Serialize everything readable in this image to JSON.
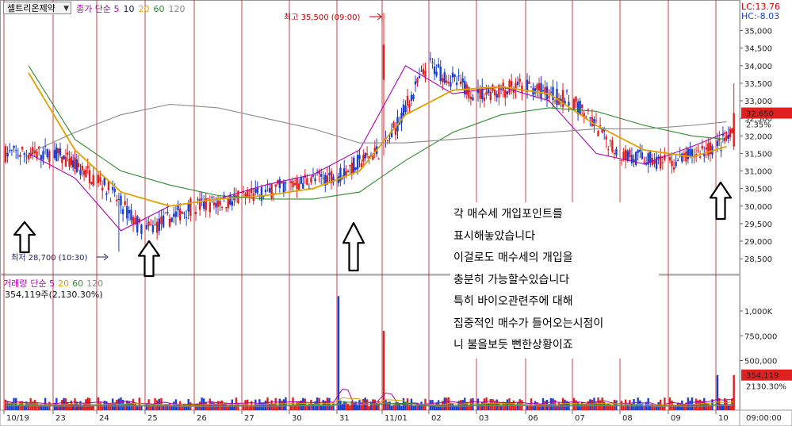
{
  "header": {
    "stock_name": "셀트리온제약",
    "price_legend": [
      {
        "text": "종가 단순 5",
        "color": "#b000b0"
      },
      {
        "text": "10",
        "color": "#1a1a6e"
      },
      {
        "text": "20",
        "color": "#e0a000"
      },
      {
        "text": "60",
        "color": "#2e8b2e"
      },
      {
        "text": "120",
        "color": "#888888"
      }
    ],
    "lc_text": "LC:13.76",
    "hc_text": "HC:-8.03",
    "lc_color": "#d00000",
    "hc_color": "#1a3fd0"
  },
  "price_panel": {
    "high_label": "최고 35,500 (09:00)",
    "low_label": "최저 28,700 (10:30)",
    "current_price": "32,650",
    "current_change": "2.35%",
    "y_ticks": [
      "35,000",
      "34,500",
      "34,000",
      "33,500",
      "33,000",
      "32,500",
      "32,000",
      "31,500",
      "31,000",
      "30,500",
      "30,000",
      "29,500",
      "29,000",
      "28,500"
    ]
  },
  "volume_panel": {
    "legend": [
      {
        "text": "거래량",
        "color": "#b000b0"
      },
      {
        "text": "단순 5",
        "color": "#b000b0"
      },
      {
        "text": "20",
        "color": "#e0a000"
      },
      {
        "text": "60",
        "color": "#2e8b2e"
      },
      {
        "text": "120",
        "color": "#888888"
      }
    ],
    "sub_label": "354,119주(2,130.30%)",
    "y_ticks": [
      "1,000K",
      "750,000",
      "500,000"
    ],
    "current_volume": "354,119",
    "current_ratio": "2130.30%"
  },
  "annotation": {
    "lines": [
      "각 매수세 개입포인트를",
      "표시해놓았습니다",
      "이걸로도 매수세의 개입을",
      "충분히 가능할수있습니다",
      "특히 바이오관련주에 대해",
      "집중적인 매수가 들어오는시점이",
      "니 불을보듯 뻔한상황이죠"
    ]
  },
  "x_axis": {
    "date_labels": [
      "10/19",
      "23",
      "24",
      "25",
      "26",
      "27",
      "30",
      "31",
      "11/01",
      "02",
      "03",
      "06",
      "07",
      "08",
      "09",
      "10"
    ],
    "time_label": "09:00:00"
  },
  "colors": {
    "up": "#e02020",
    "down": "#1a3fd0",
    "ma5": "#b000b0",
    "ma10": "#1a1a6e",
    "ma20": "#e0a000",
    "ma60": "#2e8b2e",
    "ma120": "#888888",
    "day_separator": "#c0141c"
  },
  "chart_data": {
    "type": "candlestick",
    "title": "셀트리온제약",
    "x_categories": [
      "10/19",
      "23",
      "24",
      "25",
      "26",
      "27",
      "30",
      "31",
      "11/01",
      "02",
      "03",
      "06",
      "07",
      "08",
      "09",
      "10"
    ],
    "ylim": [
      28300,
      35600
    ],
    "high": 35500,
    "low": 28700,
    "current": 32650,
    "series_approx": [
      {
        "name": "종가 단순 5",
        "values": [
          31500,
          30800,
          29300,
          30000,
          30200,
          30600,
          30900,
          31600,
          34000,
          33200,
          33400,
          33000,
          31500,
          31200,
          31700,
          32100
        ]
      },
      {
        "name": "20",
        "values": [
          33800,
          31600,
          30400,
          30000,
          30200,
          30300,
          30500,
          31000,
          32600,
          33300,
          33400,
          33200,
          32300,
          31600,
          31400,
          31700
        ]
      },
      {
        "name": "60",
        "values": [
          34000,
          31900,
          31000,
          30600,
          30300,
          30200,
          30200,
          30400,
          31300,
          32100,
          32600,
          32800,
          32700,
          32300,
          32000,
          31900
        ]
      },
      {
        "name": "120",
        "values": [
          31500,
          32100,
          32600,
          32900,
          32800,
          32500,
          32200,
          31800,
          31800,
          31900,
          32000,
          32100,
          32200,
          32200,
          32300,
          32400
        ]
      }
    ],
    "volume": {
      "ylim": [
        0,
        1200000
      ],
      "ticks": [
        500000,
        750000,
        1000000
      ],
      "spikes": [
        {
          "day": "31",
          "value": 1150000
        },
        {
          "day": "11/01",
          "value": 800000
        },
        {
          "day": "10",
          "value": 354119
        }
      ]
    }
  }
}
